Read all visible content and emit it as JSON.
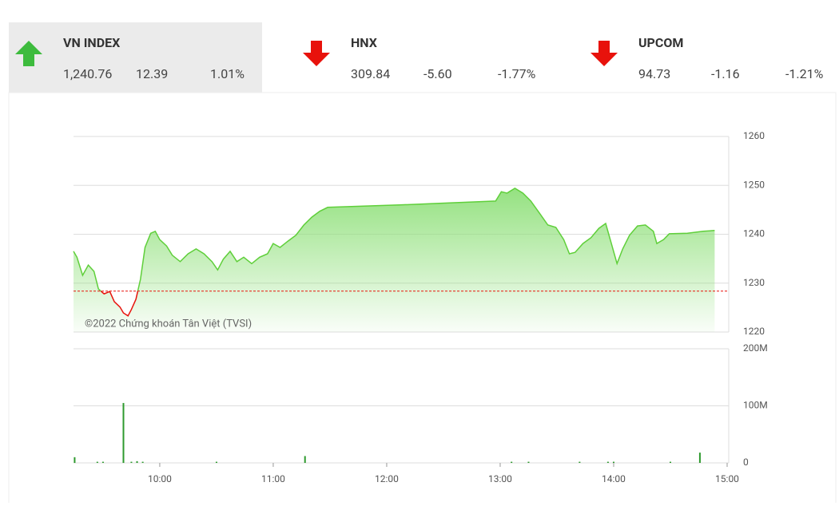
{
  "indices": [
    {
      "name": "VN INDEX",
      "value": "1,240.76",
      "change": "12.39",
      "percent": "1.01%",
      "direction": "up",
      "color": "#3dbb3d"
    },
    {
      "name": "HNX",
      "value": "309.84",
      "change": "-5.60",
      "percent": "-1.77%",
      "direction": "down",
      "color": "#e8120c"
    },
    {
      "name": "UPCOM",
      "value": "94.73",
      "change": "-1.16",
      "percent": "-1.21%",
      "direction": "down",
      "color": "#e8120c"
    }
  ],
  "chart_data": [
    {
      "type": "line",
      "annotation": "©2022 Chứng khoán Tân Việt (TVSI)",
      "x": [
        9.24,
        9.27,
        9.32,
        9.37,
        9.42,
        9.46,
        9.51,
        9.56,
        9.6,
        9.65,
        9.68,
        9.72,
        9.75,
        9.79,
        9.83,
        9.87,
        9.92,
        9.96,
        10,
        10.06,
        10.11,
        10.18,
        10.25,
        10.32,
        10.39,
        10.46,
        10.51,
        10.56,
        10.62,
        10.68,
        10.74,
        10.81,
        10.88,
        10.95,
        11,
        11.06,
        11.13,
        11.2,
        11.27,
        11.34,
        11.41,
        11.48,
        12.11,
        12.96,
        13.01,
        13.06,
        13.13,
        13.2,
        13.27,
        13.35,
        13.42,
        13.49,
        13.56,
        13.61,
        13.66,
        13.73,
        13.8,
        13.87,
        13.93,
        13.98,
        14.03,
        14.08,
        14.14,
        14.21,
        14.28,
        14.35,
        14.38,
        14.44,
        14.49,
        14.65,
        14.79,
        14.89
      ],
      "values": [
        1236.5,
        1235.3,
        1231.6,
        1233.7,
        1232.4,
        1228.8,
        1227.8,
        1228.3,
        1226.2,
        1225.1,
        1223.9,
        1223.3,
        1224.6,
        1226.7,
        1230.8,
        1237.3,
        1240.2,
        1240.6,
        1238.9,
        1237.6,
        1235.7,
        1234.4,
        1236.0,
        1237.0,
        1236.0,
        1234.4,
        1232.7,
        1234.9,
        1236.5,
        1234.4,
        1235.3,
        1234.0,
        1235.3,
        1236.0,
        1238.1,
        1237.3,
        1238.6,
        1239.8,
        1241.9,
        1243.5,
        1244.7,
        1245.5,
        1246.0,
        1246.8,
        1248.7,
        1248.4,
        1249.4,
        1248.4,
        1246.8,
        1244.2,
        1241.9,
        1241.4,
        1238.9,
        1236.0,
        1236.3,
        1238.1,
        1239.3,
        1241.2,
        1242.2,
        1238.1,
        1234.0,
        1237.0,
        1239.8,
        1241.7,
        1241.9,
        1240.6,
        1238.1,
        1238.9,
        1240.1,
        1240.2,
        1240.6,
        1240.76
      ],
      "reference": 1228.37,
      "color": "#5fcf3a",
      "down_color": "#e8120c",
      "xlim": [
        9.24,
        15
      ],
      "ylim": [
        1220,
        1260
      ],
      "yticks": [
        1220,
        1230,
        1240,
        1250,
        1260
      ],
      "grid": true
    },
    {
      "type": "bar",
      "color": "#2e9a2e",
      "x": [
        9.25,
        9.45,
        9.5,
        9.68,
        9.75,
        9.8,
        9.85,
        10.5,
        11.28,
        13.1,
        13.25,
        13.7,
        13.95,
        14,
        14.5,
        14.76
      ],
      "values": [
        10000000,
        2000000,
        2000000,
        105000000,
        2000000,
        3000000,
        2000000,
        2000000,
        12000000,
        2000000,
        2000000,
        2000000,
        2000000,
        2000000,
        2000000,
        18000000
      ],
      "xlim": [
        9.24,
        15
      ],
      "xticks": [
        {
          "value": 10,
          "label": "10:00"
        },
        {
          "value": 11,
          "label": "11:00"
        },
        {
          "value": 12,
          "label": "12:00"
        },
        {
          "value": 13,
          "label": "13:00"
        },
        {
          "value": 14,
          "label": "14:00"
        },
        {
          "value": 15,
          "label": "15:00"
        }
      ],
      "ylim": [
        0,
        200000000
      ],
      "yticks": [
        0,
        {
          "value": 100000000,
          "label": "100M"
        },
        {
          "value": 200000000,
          "label": "200M"
        }
      ],
      "grid": true
    }
  ]
}
